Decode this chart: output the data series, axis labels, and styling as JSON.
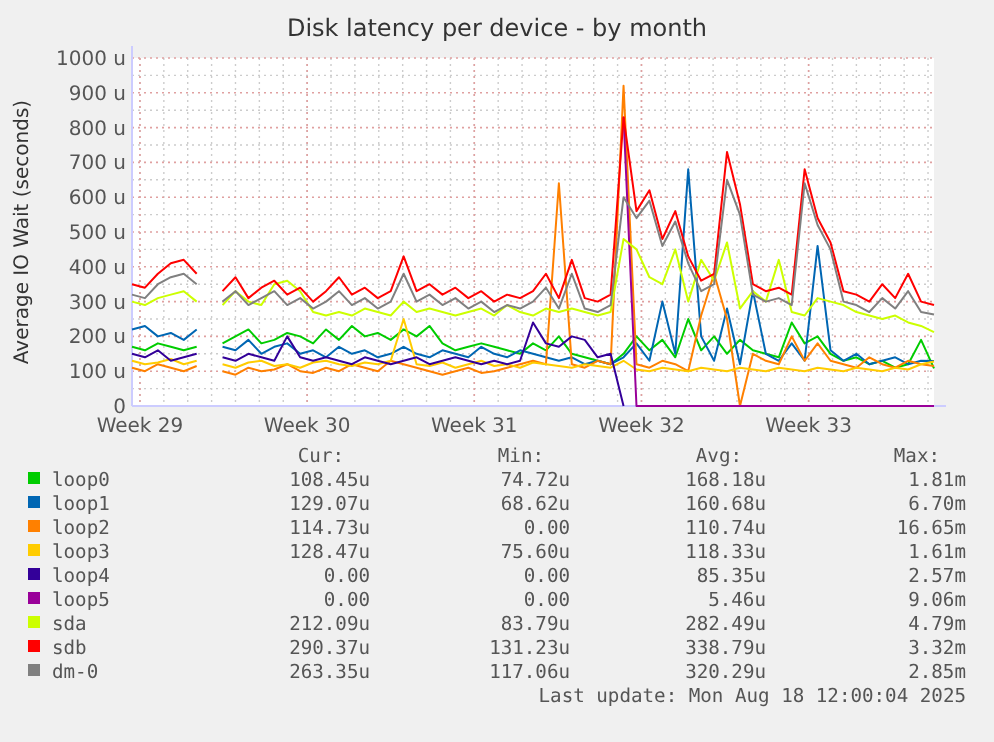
{
  "chart_data": {
    "type": "line",
    "title": "Disk latency per device - by month",
    "ylabel": "Average IO Wait (seconds)",
    "x": [
      "2025-07-13T16:00",
      "2025-07-14T05:00",
      "2025-07-14T18:00",
      "2025-07-15T07:00",
      "2025-07-15T20:00",
      "2025-07-16T09:00",
      "2025-07-16T22:00",
      "2025-07-17T11:00",
      "2025-07-18T00:00",
      "2025-07-18T13:00",
      "2025-07-19T02:00",
      "2025-07-19T15:00",
      "2025-07-20T04:00",
      "2025-07-20T17:00",
      "2025-07-21T06:00",
      "2025-07-21T19:00",
      "2025-07-22T08:00",
      "2025-07-22T21:00",
      "2025-07-23T10:00",
      "2025-07-23T23:00",
      "2025-07-24T12:00",
      "2025-07-25T01:00",
      "2025-07-25T14:00",
      "2025-07-26T03:00",
      "2025-07-26T16:00",
      "2025-07-27T05:00",
      "2025-07-27T18:00",
      "2025-07-28T07:00",
      "2025-07-28T20:00",
      "2025-07-29T09:00",
      "2025-07-29T22:00",
      "2025-07-30T11:00",
      "2025-07-31T00:00",
      "2025-07-31T13:00",
      "2025-08-01T02:00",
      "2025-08-01T15:00",
      "2025-08-02T04:00",
      "2025-08-02T17:00",
      "2025-08-03T06:00",
      "2025-08-03T19:00",
      "2025-08-04T08:00",
      "2025-08-04T21:00",
      "2025-08-05T10:00",
      "2025-08-05T23:00",
      "2025-08-06T12:00",
      "2025-08-07T01:00",
      "2025-08-07T14:00",
      "2025-08-08T03:00",
      "2025-08-08T16:00",
      "2025-08-09T05:00",
      "2025-08-09T18:00",
      "2025-08-10T07:00",
      "2025-08-10T20:00",
      "2025-08-11T09:00",
      "2025-08-11T22:00",
      "2025-08-12T11:00",
      "2025-08-13T00:00",
      "2025-08-13T13:00",
      "2025-08-14T02:00",
      "2025-08-14T15:00",
      "2025-08-15T04:00",
      "2025-08-15T17:00",
      "2025-08-16T06:00"
    ],
    "xlim": [
      "2025-07-13T16:00",
      "2025-08-16T06:00"
    ],
    "xticks": [
      {
        "value": "2025-07-14",
        "label": "Week 29"
      },
      {
        "value": "2025-07-21",
        "label": "Week 30"
      },
      {
        "value": "2025-07-28",
        "label": "Week 31"
      },
      {
        "value": "2025-08-04",
        "label": "Week 32"
      },
      {
        "value": "2025-08-11",
        "label": "Week 33"
      }
    ],
    "ylim": [
      0,
      1000
    ],
    "yticks": [
      0,
      {
        "value": 100,
        "label": "100 u"
      },
      {
        "value": 200,
        "label": "200 u"
      },
      {
        "value": 300,
        "label": "300 u"
      },
      {
        "value": 400,
        "label": "400 u"
      },
      {
        "value": 500,
        "label": "500 u"
      },
      {
        "value": 600,
        "label": "600 u"
      },
      {
        "value": 700,
        "label": "700 u"
      },
      {
        "value": 800,
        "label": "800 u"
      },
      {
        "value": 900,
        "label": "900 u"
      },
      {
        "value": 1000,
        "label": "1000 u"
      }
    ],
    "grid": true,
    "legend": "bottom",
    "marker": "none",
    "line_style": "solid",
    "series": [
      {
        "name": "loop0",
        "color": "#00cc00",
        "values": [
          170,
          160,
          180,
          170,
          160,
          170,
          null,
          180,
          200,
          220,
          180,
          190,
          210,
          200,
          180,
          220,
          190,
          230,
          200,
          210,
          190,
          220,
          200,
          230,
          180,
          160,
          170,
          180,
          170,
          160,
          150,
          180,
          160,
          200,
          150,
          140,
          130,
          120,
          150,
          200,
          160,
          190,
          140,
          250,
          160,
          200,
          150,
          190,
          160,
          150,
          140,
          240,
          180,
          200,
          150,
          130,
          140,
          120,
          130,
          110,
          120,
          190,
          108
        ]
      },
      {
        "name": "loop1",
        "color": "#0066b3",
        "values": [
          220,
          230,
          200,
          210,
          190,
          220,
          null,
          170,
          160,
          190,
          150,
          170,
          180,
          150,
          160,
          140,
          170,
          150,
          160,
          140,
          150,
          170,
          150,
          140,
          160,
          150,
          140,
          170,
          150,
          140,
          160,
          150,
          140,
          130,
          140,
          120,
          130,
          120,
          140,
          180,
          130,
          300,
          150,
          680,
          200,
          130,
          280,
          120,
          330,
          150,
          130,
          180,
          130,
          460,
          160,
          130,
          150,
          120,
          130,
          140,
          120,
          130,
          129
        ]
      },
      {
        "name": "loop2",
        "color": "#ff8000",
        "values": [
          110,
          100,
          120,
          110,
          100,
          115,
          null,
          100,
          90,
          110,
          100,
          105,
          120,
          100,
          95,
          110,
          100,
          120,
          110,
          100,
          130,
          120,
          110,
          100,
          90,
          100,
          110,
          95,
          100,
          110,
          120,
          130,
          120,
          640,
          120,
          110,
          130,
          120,
          920,
          120,
          110,
          130,
          120,
          100,
          260,
          380,
          250,
          0,
          150,
          130,
          120,
          200,
          130,
          180,
          130,
          120,
          110,
          140,
          120,
          110,
          130,
          120,
          115
        ]
      },
      {
        "name": "loop3",
        "color": "#ffcc00",
        "values": [
          130,
          120,
          125,
          135,
          120,
          130,
          null,
          120,
          110,
          125,
          130,
          115,
          120,
          110,
          125,
          130,
          120,
          115,
          125,
          120,
          130,
          250,
          120,
          115,
          125,
          110,
          120,
          130,
          115,
          120,
          110,
          125,
          120,
          115,
          110,
          120,
          115,
          110,
          130,
          105,
          100,
          110,
          105,
          100,
          110,
          105,
          100,
          110,
          105,
          100,
          110,
          105,
          100,
          110,
          105,
          100,
          110,
          105,
          100,
          110,
          105,
          120,
          128
        ]
      },
      {
        "name": "loop4",
        "color": "#330099",
        "values": [
          150,
          140,
          160,
          130,
          140,
          150,
          null,
          140,
          130,
          150,
          140,
          130,
          200,
          140,
          130,
          140,
          130,
          120,
          140,
          130,
          120,
          130,
          140,
          120,
          130,
          140,
          130,
          120,
          130,
          120,
          130,
          240,
          180,
          170,
          200,
          190,
          140,
          150,
          0,
          null,
          null,
          null,
          null,
          null,
          null,
          null,
          null,
          null,
          null,
          null,
          null,
          null,
          null,
          null,
          null,
          null,
          null,
          null,
          null,
          null,
          null,
          null,
          null
        ]
      },
      {
        "name": "loop5",
        "color": "#990099",
        "values": [
          null,
          null,
          null,
          null,
          null,
          null,
          null,
          null,
          null,
          null,
          null,
          null,
          null,
          null,
          null,
          null,
          null,
          null,
          null,
          null,
          null,
          null,
          null,
          null,
          null,
          null,
          null,
          null,
          null,
          null,
          null,
          null,
          null,
          null,
          null,
          null,
          null,
          null,
          830,
          0,
          0,
          0,
          0,
          0,
          0,
          0,
          0,
          0,
          0,
          0,
          0,
          0,
          0,
          0,
          0,
          0,
          0,
          0,
          0,
          0,
          0,
          0,
          0
        ]
      },
      {
        "name": "sda",
        "color": "#ccff00",
        "values": [
          300,
          290,
          310,
          320,
          330,
          300,
          null,
          290,
          330,
          300,
          290,
          350,
          360,
          330,
          270,
          260,
          270,
          260,
          280,
          270,
          260,
          300,
          270,
          280,
          270,
          260,
          270,
          280,
          260,
          290,
          270,
          260,
          280,
          270,
          280,
          270,
          260,
          270,
          480,
          450,
          370,
          350,
          450,
          300,
          420,
          360,
          470,
          280,
          330,
          300,
          420,
          270,
          260,
          310,
          300,
          290,
          270,
          260,
          250,
          260,
          240,
          230,
          212
        ]
      },
      {
        "name": "sdb",
        "color": "#ff0000",
        "values": [
          350,
          340,
          380,
          410,
          420,
          380,
          null,
          330,
          370,
          310,
          340,
          360,
          320,
          340,
          300,
          330,
          370,
          320,
          340,
          310,
          330,
          430,
          330,
          350,
          320,
          340,
          310,
          330,
          300,
          320,
          310,
          330,
          380,
          310,
          420,
          310,
          300,
          320,
          830,
          560,
          620,
          480,
          560,
          430,
          360,
          380,
          730,
          580,
          350,
          330,
          340,
          320,
          680,
          540,
          470,
          330,
          320,
          300,
          350,
          310,
          380,
          300,
          290
        ]
      },
      {
        "name": "dm-0",
        "color": "#808080",
        "values": [
          320,
          310,
          350,
          370,
          380,
          350,
          null,
          300,
          330,
          290,
          310,
          330,
          290,
          310,
          280,
          300,
          330,
          290,
          310,
          280,
          300,
          380,
          300,
          320,
          290,
          310,
          280,
          300,
          270,
          290,
          280,
          300,
          340,
          280,
          380,
          280,
          270,
          290,
          600,
          540,
          590,
          460,
          530,
          410,
          330,
          350,
          650,
          550,
          320,
          300,
          310,
          290,
          640,
          520,
          450,
          300,
          290,
          270,
          310,
          280,
          330,
          270,
          263
        ]
      }
    ],
    "annotations": [
      "Cur:",
      "Min:",
      "Avg:",
      "Max:",
      "108.45u",
      "74.72u",
      "168.18u",
      "1.81m",
      "129.07u",
      "68.62u",
      "160.68u",
      "6.70m",
      "114.73u",
      "0.00",
      "110.74u",
      "16.65m",
      "128.47u",
      "75.60u",
      "118.33u",
      "1.61m",
      "0.00",
      "0.00",
      "85.35u",
      "2.57m",
      "0.00",
      "0.00",
      "5.46u",
      "9.06m",
      "212.09u",
      "83.79u",
      "282.49u",
      "4.79m",
      "290.37u",
      "131.23u",
      "338.79u",
      "3.32m",
      "263.35u",
      "117.06u",
      "320.29u",
      "2.85m",
      "Last update: Mon Aug 18 12:00:04 2025"
    ]
  }
}
